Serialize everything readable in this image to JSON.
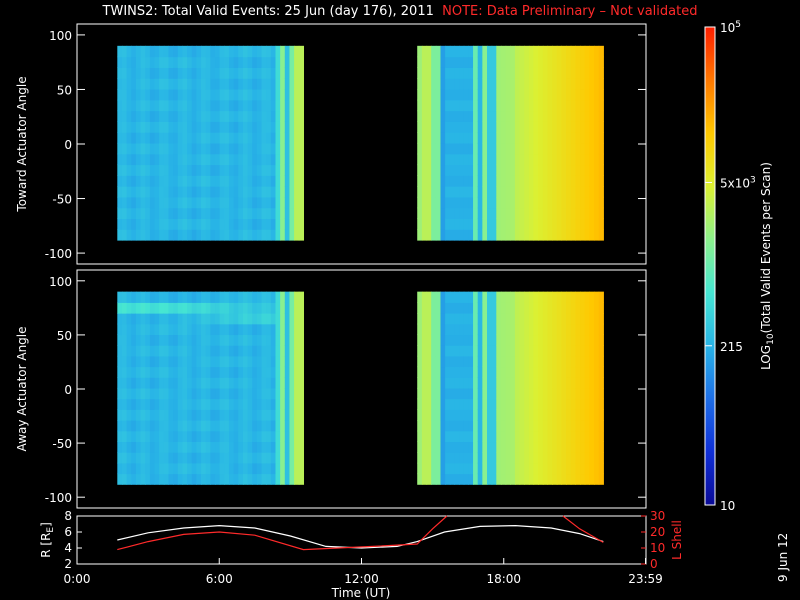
{
  "title": {
    "main": "TWINS2: Total Valid Events: 25 Jun (day 176), 2011",
    "note": "NOTE: Data Preliminary – Not validated"
  },
  "date_stamp": "9 Jun 12",
  "chart_data": [
    {
      "type": "heatmap",
      "name_ref": "toward",
      "ylabel": "Toward Actuator Angle",
      "ylim": [
        -110,
        110
      ],
      "yticks": [
        100,
        50,
        0,
        -50,
        -100
      ],
      "xlim": [
        0,
        24
      ],
      "segments": [
        {
          "x_start": 1.7,
          "x_end": 9.55,
          "y_start": -88,
          "y_end": 90
        },
        {
          "x_start": 14.35,
          "x_end": 22.2,
          "y_start": -88,
          "y_end": 90
        }
      ]
    },
    {
      "type": "heatmap",
      "name_ref": "away",
      "ylabel": "Away Actuator Angle",
      "ylim": [
        -110,
        110
      ],
      "yticks": [
        100,
        50,
        0,
        -50,
        -100
      ],
      "xlim": [
        0,
        24
      ],
      "segments": [
        {
          "x_start": 1.7,
          "x_end": 9.55,
          "y_start": -88,
          "y_end": 90
        },
        {
          "x_start": 14.35,
          "x_end": 22.2,
          "y_start": -88,
          "y_end": 90
        }
      ]
    },
    {
      "type": "line",
      "name_ref": "orbit",
      "ylabel_left": "R [R",
      "ylabel_left_sub": "E",
      "ylabel_left_end": "]",
      "ylabel_right": "L Shell",
      "ylim_left": [
        2,
        8
      ],
      "yticks_left": [
        8,
        6,
        4,
        2
      ],
      "ylim_right": [
        0,
        30
      ],
      "yticks_right": [
        30,
        20,
        10,
        0
      ],
      "xlim": [
        0,
        24
      ],
      "xlabel": "Time (UT)",
      "xticks": [
        {
          "value": 0,
          "label": "0:00"
        },
        {
          "value": 6,
          "label": "6:00"
        },
        {
          "value": 12,
          "label": "12:00"
        },
        {
          "value": 18,
          "label": "18:00"
        },
        {
          "value": 23.98,
          "label": "23:59"
        }
      ],
      "series": [
        {
          "color": "#ffffff",
          "axis": "left",
          "x": [
            1.7,
            3,
            4.5,
            6,
            7.5,
            9.0,
            10.5,
            12,
            13.5,
            14.35,
            15.5,
            17,
            18.5,
            20,
            21.2,
            22.2
          ],
          "y": [
            5.0,
            5.9,
            6.5,
            6.8,
            6.5,
            5.5,
            4.2,
            4.0,
            4.2,
            4.8,
            6.0,
            6.7,
            6.8,
            6.5,
            5.8,
            4.8
          ]
        },
        {
          "color": "#ff2a2a",
          "axis": "right",
          "x": [
            1.7,
            3,
            4.5,
            6,
            7.5,
            9.55,
            11,
            12.5,
            14.35,
            15.0,
            15.6
          ],
          "y": [
            9.0,
            14.0,
            18.5,
            20.0,
            18.0,
            9.0,
            10.0,
            11.0,
            12.5,
            22.0,
            31.0
          ]
        },
        {
          "color": "#ff2a2a",
          "axis": "right",
          "x": [
            20.5,
            21.2,
            22.2
          ],
          "y": [
            31.0,
            22.0,
            13.5
          ]
        }
      ]
    }
  ],
  "colorbar": {
    "label_main": "LOG",
    "label_sub": "10",
    "label_end": "(Total Valid  Events per Scan)",
    "ticks": [
      {
        "value": 10,
        "label": "10"
      },
      {
        "value": 215,
        "label": "215"
      },
      {
        "value": 5000,
        "label_base": "5x10",
        "label_exp": "3"
      },
      {
        "value": 100000,
        "label_base": "10",
        "label_exp": "5"
      }
    ],
    "vmin": 10,
    "vmax": 100000,
    "colors": [
      "#0a0a96",
      "#1030d8",
      "#1e6ee6",
      "#28b4e6",
      "#46e6d2",
      "#8cf08c",
      "#dcf032",
      "#ffc800",
      "#ff7800",
      "#ff1e00"
    ]
  }
}
